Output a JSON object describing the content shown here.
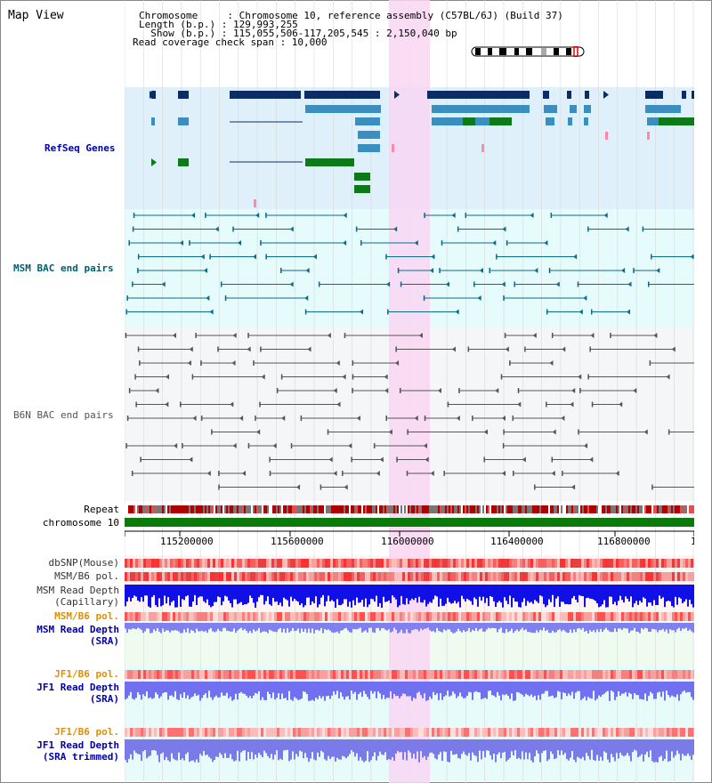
{
  "title": "Map View",
  "info": {
    "chromosome": "Chromosome     : Chromosome 10, reference assembly (C57BL/6J) (Build 37)",
    "length": "Length (b.p.) : 129,993,255",
    "show": "  Show (b.p.) : 115,055,506-117,205,545 : 2,150,040 bp",
    "span": "Read coverage check span : 10,000"
  },
  "tracks": {
    "refseq": "RefSeq Genes",
    "msm_bac": "MSM BAC end pairs",
    "b6n_bac": "B6N BAC end pairs",
    "repeat": "Repeat",
    "chromosome": "chromosome 10",
    "dbsnp": "dbSNP(Mouse)",
    "msm_b6_pol": "MSM/B6 pol.",
    "msm_depth_cap_1": "MSM Read Depth",
    "msm_depth_cap_2": "(Capillary)",
    "msm_b6_pol_sra": "MSM/B6 pol.",
    "msm_depth_sra_1": "MSM Read Depth",
    "msm_depth_sra_2": "(SRA)",
    "jf1_b6_pol": "JF1/B6 pol.",
    "jf1_depth_1": "JF1 Read Depth",
    "jf1_depth_2": "(SRA)",
    "jf1_b6_pol_2": "JF1/B6 pol.",
    "jf1_depth_trim_1": "JF1 Read Depth",
    "jf1_depth_trim_2": "(SRA trimmed)"
  },
  "axis_ticks": [
    "115200000",
    "115600000",
    "116000000",
    "116400000",
    "116800000",
    "117"
  ],
  "colors": {
    "refseq_bg": "#dff0fa",
    "msm_bg": "#e6fbfb",
    "highlight": "#f9d6f3",
    "gene_dark": "#0c2c66",
    "gene_mid": "#3a8ec0",
    "gene_green": "#0d7a1a",
    "label_blue": "#0000aa",
    "label_teal": "#006070",
    "label_orange": "#e08f00"
  }
}
